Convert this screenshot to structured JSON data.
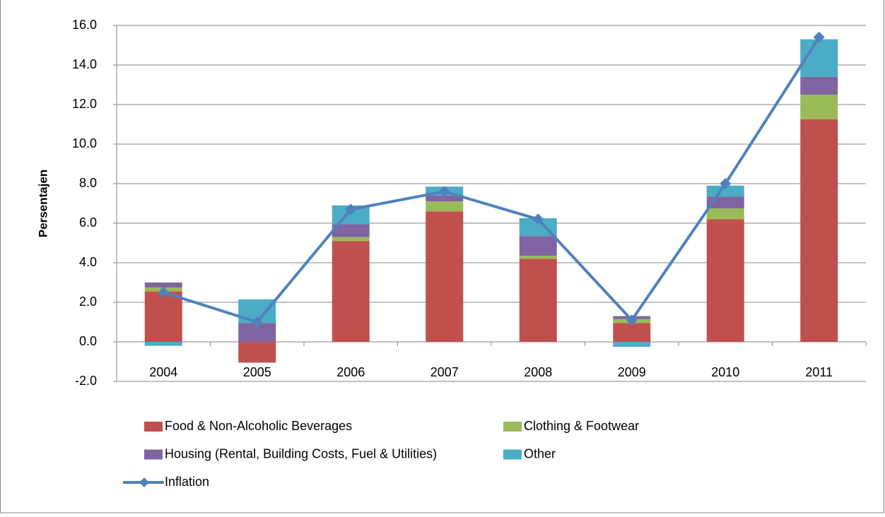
{
  "chart_data": {
    "type": "bar",
    "stacked": true,
    "y_label": "Persentajen",
    "categories": [
      "2004",
      "2005",
      "2006",
      "2007",
      "2008",
      "2009",
      "2010",
      "2011"
    ],
    "series": [
      {
        "name": "Food & Non-Alcoholic Beverages",
        "color": "#c0504d",
        "values": [
          2.55,
          -1.05,
          5.1,
          6.6,
          4.2,
          0.95,
          6.2,
          11.25
        ]
      },
      {
        "name": "Clothing & Footwear",
        "color": "#9bbb59",
        "values": [
          0.2,
          0,
          0.2,
          0.5,
          0.15,
          0.2,
          0.55,
          1.25
        ]
      },
      {
        "name": "Housing (Rental, Building Costs, Fuel & Utilities)",
        "color": "#8064a2",
        "values": [
          0.25,
          0.95,
          0.65,
          0.3,
          1.0,
          0.15,
          0.6,
          0.9
        ]
      },
      {
        "name": "Other",
        "color": "#4bacc6",
        "values": [
          -0.2,
          1.2,
          0.95,
          0.45,
          0.9,
          -0.25,
          0.55,
          1.9
        ]
      },
      {
        "name": "Inflation",
        "color": "#4f81bd",
        "type": "line",
        "values": [
          2.5,
          1.0,
          6.7,
          7.6,
          6.2,
          1.1,
          8.0,
          15.4
        ]
      }
    ],
    "ylim": [
      -2,
      16
    ],
    "yticks": [
      {
        "value": -2,
        "label": "-2.0"
      },
      {
        "value": 0,
        "label": "0.0"
      },
      {
        "value": 2,
        "label": "2.0"
      },
      {
        "value": 4,
        "label": "4.0"
      },
      {
        "value": 6,
        "label": "6.0"
      },
      {
        "value": 8,
        "label": "8.0"
      },
      {
        "value": 10,
        "label": "10.0"
      },
      {
        "value": 12,
        "label": "12.0"
      },
      {
        "value": 14,
        "label": "14.0"
      },
      {
        "value": 16,
        "label": "16.0"
      }
    ],
    "grid": true,
    "legend": "bottom"
  }
}
